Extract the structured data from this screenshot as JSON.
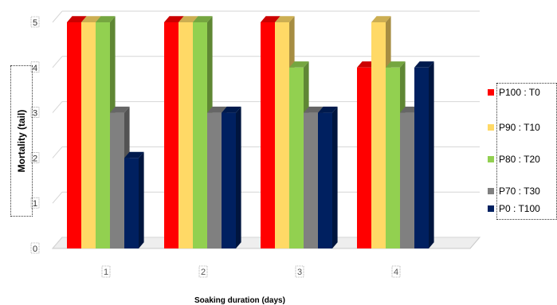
{
  "chart_data": {
    "type": "bar",
    "title": "",
    "xlabel": "Soaking duration (days)",
    "ylabel": "Mortality (tail)",
    "categories": [
      "1",
      "2",
      "3",
      "4"
    ],
    "ylim": [
      0,
      5
    ],
    "yticks": [
      "0",
      "1",
      "2",
      "3",
      "4",
      "5"
    ],
    "grid": true,
    "legend_position": "right",
    "series": [
      {
        "name": "P100 : T0",
        "color": "#ff0000",
        "values": [
          5,
          5,
          5,
          4
        ]
      },
      {
        "name": "P90 : T10",
        "color": "#ffd966",
        "values": [
          5,
          5,
          5,
          5
        ]
      },
      {
        "name": "P80 : T20",
        "color": "#92d050",
        "values": [
          5,
          5,
          4,
          4
        ]
      },
      {
        "name": "P70 : T30",
        "color": "#808080",
        "values": [
          3,
          3,
          3,
          3
        ]
      },
      {
        "name": "P0 : T100",
        "color": "#002060",
        "values": [
          2,
          3,
          3,
          4
        ]
      }
    ]
  }
}
